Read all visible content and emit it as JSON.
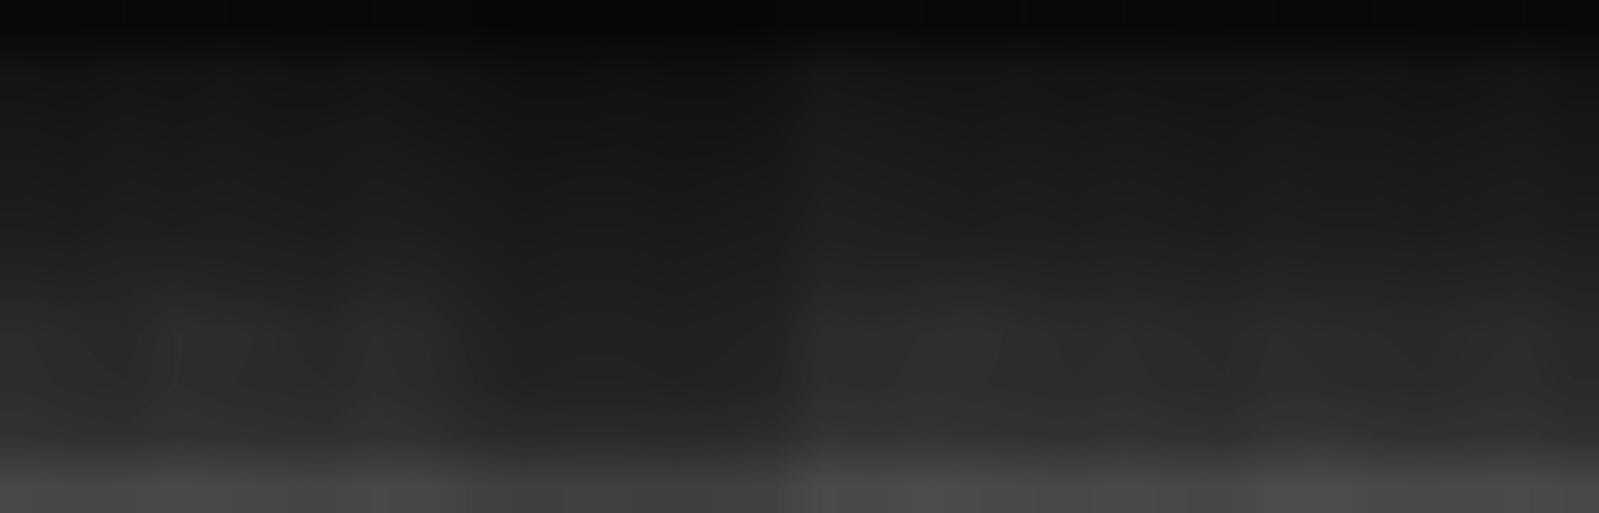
{
  "chart_data": {
    "type": "heatmap",
    "color": "gray",
    "tick_labels": false,
    "value_range": [
      0,
      255
    ],
    "cells": [
      [
        8,
        8,
        9,
        8,
        9,
        8,
        8,
        9,
        8,
        8,
        7,
        7,
        7,
        7,
        7,
        8,
        9,
        9,
        9,
        8,
        9,
        8,
        9,
        8,
        8,
        9,
        8,
        9,
        8,
        8,
        9,
        8
      ],
      [
        20,
        19,
        21,
        20,
        22,
        20,
        19,
        21,
        20,
        18,
        16,
        16,
        17,
        16,
        16,
        18,
        23,
        22,
        21,
        21,
        22,
        20,
        21,
        20,
        20,
        21,
        20,
        21,
        19,
        20,
        22,
        19
      ],
      [
        24,
        23,
        25,
        24,
        25,
        23,
        24,
        25,
        23,
        22,
        20,
        20,
        21,
        20,
        20,
        22,
        27,
        26,
        25,
        24,
        25,
        24,
        25,
        24,
        23,
        25,
        24,
        24,
        23,
        24,
        25,
        23
      ],
      [
        27,
        26,
        28,
        27,
        28,
        27,
        26,
        28,
        27,
        25,
        23,
        24,
        24,
        23,
        24,
        25,
        30,
        29,
        28,
        27,
        28,
        27,
        28,
        27,
        26,
        28,
        27,
        27,
        26,
        27,
        28,
        26
      ],
      [
        30,
        29,
        31,
        30,
        31,
        30,
        29,
        31,
        30,
        28,
        26,
        27,
        27,
        26,
        27,
        28,
        33,
        32,
        31,
        30,
        31,
        30,
        31,
        30,
        29,
        31,
        30,
        30,
        29,
        30,
        31,
        29
      ],
      [
        36,
        35,
        37,
        38,
        36,
        35,
        34,
        37,
        36,
        32,
        29,
        30,
        30,
        29,
        30,
        31,
        38,
        37,
        38,
        39,
        37,
        36,
        37,
        36,
        35,
        37,
        36,
        36,
        35,
        36,
        37,
        35
      ],
      [
        44,
        42,
        40,
        46,
        45,
        43,
        40,
        44,
        42,
        36,
        32,
        33,
        33,
        32,
        33,
        35,
        45,
        44,
        46,
        47,
        45,
        43,
        44,
        42,
        41,
        44,
        43,
        42,
        41,
        43,
        44,
        40
      ],
      [
        45,
        43,
        42,
        46,
        44,
        43,
        42,
        45,
        43,
        38,
        34,
        35,
        35,
        34,
        35,
        37,
        46,
        45,
        47,
        46,
        45,
        44,
        45,
        43,
        42,
        45,
        44,
        43,
        42,
        44,
        45,
        42
      ],
      [
        50,
        48,
        47,
        50,
        49,
        48,
        47,
        50,
        48,
        44,
        42,
        43,
        43,
        42,
        43,
        45,
        52,
        51,
        52,
        51,
        50,
        49,
        51,
        49,
        48,
        52,
        53,
        50,
        49,
        50,
        51,
        48
      ],
      [
        72,
        70,
        71,
        74,
        72,
        70,
        69,
        72,
        71,
        66,
        63,
        64,
        64,
        63,
        64,
        66,
        75,
        74,
        76,
        75,
        73,
        72,
        74,
        72,
        71,
        76,
        77,
        74,
        73,
        74,
        75,
        72
      ]
    ]
  }
}
